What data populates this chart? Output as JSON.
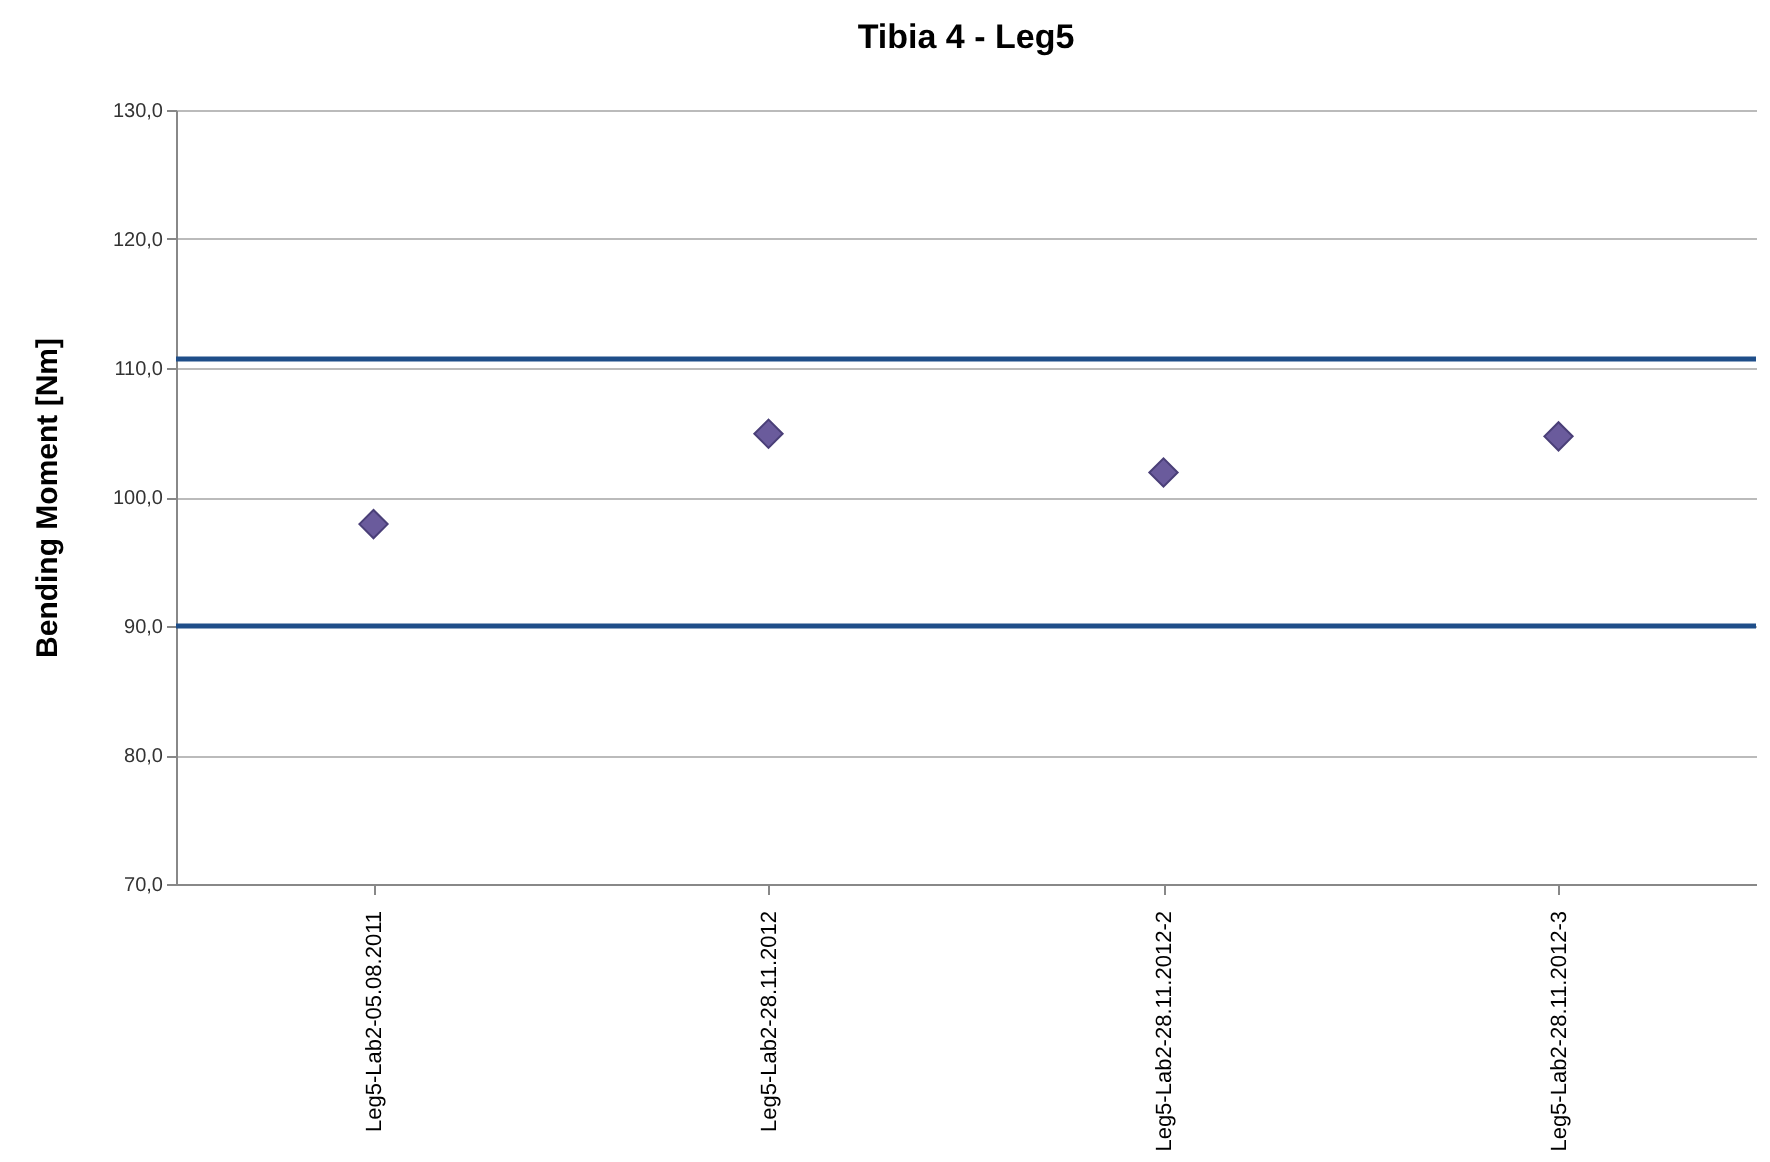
{
  "chart_data": {
    "type": "scatter",
    "title": "Tibia 4 - Leg5",
    "ylabel": "Bending Moment  [Nm]",
    "categories": [
      "Leg5-Lab2-05.08.2011",
      "Leg5-Lab2-28.11.2012",
      "Leg5-Lab2-28.11.2012-2",
      "Leg5-Lab2-28.11.2012-3"
    ],
    "series": [
      {
        "color": "#6a5b9c",
        "values": [
          97.9,
          104.9,
          101.9,
          104.7
        ]
      }
    ],
    "marker": "diamond",
    "grid": "y",
    "ylim": [
      70,
      130
    ],
    "yticks": [
      {
        "value": 70,
        "label": "70,0"
      },
      {
        "value": 80,
        "label": "80,0"
      },
      {
        "value": 90,
        "label": "90,0"
      },
      {
        "value": 100,
        "label": "100,0"
      },
      {
        "value": 110,
        "label": "110,0"
      },
      {
        "value": 120,
        "label": "120,0"
      },
      {
        "value": 130,
        "label": "130,0"
      }
    ],
    "ref_lines": [
      {
        "axis": "y",
        "value": 110.7,
        "color": "#1f4e89"
      },
      {
        "axis": "y",
        "value": 90.0,
        "color": "#1f4e89"
      }
    ]
  }
}
